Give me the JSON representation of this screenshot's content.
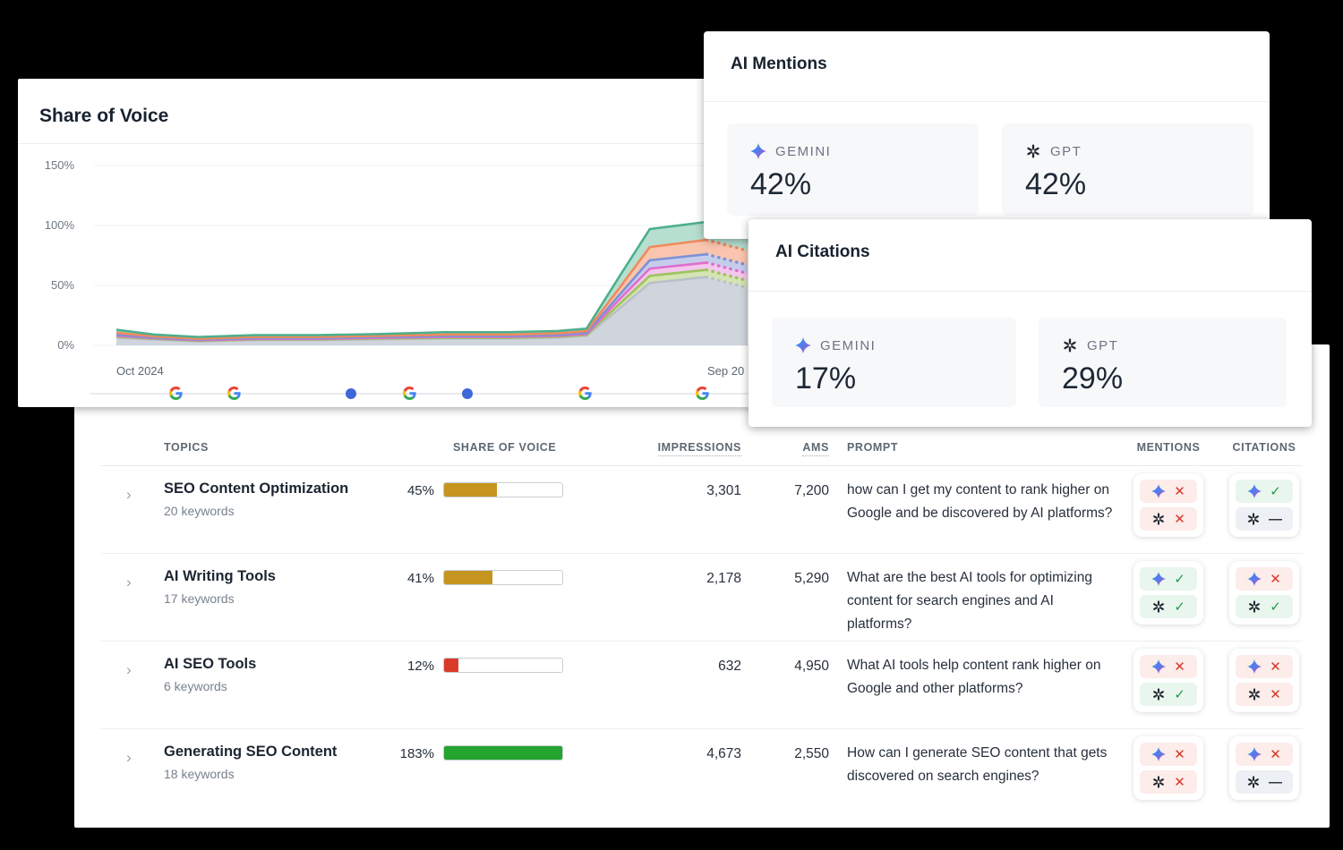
{
  "chart_data": {
    "type": "area",
    "title": "Share of Voice",
    "y_ticks": [
      "150%",
      "100%",
      "50%",
      "0%"
    ],
    "y_tick_values": [
      150,
      100,
      50,
      0
    ],
    "ylim": [
      0,
      160
    ],
    "x_axis": {
      "start_label": "Oct 2024",
      "end_label": "Sep 20"
    },
    "x": [
      0,
      0.06,
      0.13,
      0.22,
      0.32,
      0.42,
      0.52,
      0.62,
      0.7,
      0.745,
      0.8,
      0.845,
      0.935,
      1.0
    ],
    "forecast_from_index": 12,
    "series": [
      {
        "name": "series-1-teal",
        "color": "#4DAF8D",
        "fill": "rgba(96,185,150,0.45)",
        "values": [
          13,
          9,
          7,
          8.5,
          8.5,
          9.5,
          11,
          11,
          12,
          14,
          60,
          97,
          103,
          93
        ]
      },
      {
        "name": "series-2-orange",
        "color": "#F08A5C",
        "fill": "rgba(244,150,108,0.55)",
        "values": [
          10.5,
          7.5,
          5.5,
          7,
          7,
          8,
          9,
          9,
          10,
          12,
          50,
          82,
          88,
          79
        ]
      },
      {
        "name": "series-3-blue",
        "color": "#7E91D6",
        "fill": "rgba(140,156,216,0.5)",
        "values": [
          9,
          6.5,
          4.8,
          6,
          6,
          7,
          7.8,
          7.8,
          8.8,
          10.5,
          44,
          71,
          76,
          67
        ]
      },
      {
        "name": "series-4-pink",
        "color": "#E06ECF",
        "fill": "rgba(230,130,214,0.45)",
        "values": [
          8,
          6,
          4.2,
          5.4,
          5.4,
          6.3,
          7,
          7,
          8,
          9.5,
          40,
          64,
          69,
          60
        ]
      },
      {
        "name": "series-5-lime",
        "color": "#9EC45C",
        "fill": "rgba(170,202,104,0.5)",
        "values": [
          7.2,
          5.4,
          3.8,
          4.9,
          4.9,
          5.7,
          6.3,
          6.3,
          7.2,
          8.7,
          36,
          58,
          63,
          54
        ]
      },
      {
        "name": "series-6-gray",
        "color": "#B9C0CA",
        "fill": "rgba(206,211,219,0.95)",
        "values": [
          6.4,
          4.8,
          3.4,
          4.4,
          4.4,
          5.1,
          5.7,
          5.7,
          6.5,
          8,
          32,
          52,
          57,
          48
        ]
      }
    ],
    "markers": [
      {
        "type": "google-icon",
        "f": 0.094
      },
      {
        "type": "google-icon",
        "f": 0.186
      },
      {
        "type": "event-dot",
        "f": 0.372
      },
      {
        "type": "google-icon",
        "f": 0.464
      },
      {
        "type": "event-dot",
        "f": 0.556
      },
      {
        "type": "google-icon",
        "f": 0.742
      },
      {
        "type": "google-icon",
        "f": 0.929
      }
    ],
    "marker_dot_color": "#3E68D8"
  },
  "ai_mentions": {
    "title": "AI Mentions",
    "stats": [
      {
        "provider": "GEMINI",
        "icon": "gemini-icon",
        "value": "42%"
      },
      {
        "provider": "GPT",
        "icon": "gpt-icon",
        "value": "42%"
      }
    ]
  },
  "ai_citations": {
    "title": "AI Citations",
    "stats": [
      {
        "provider": "GEMINI",
        "icon": "gemini-icon",
        "value": "17%"
      },
      {
        "provider": "GPT",
        "icon": "gpt-icon",
        "value": "29%"
      }
    ]
  },
  "marks": {
    "check": "✓",
    "x": "✕",
    "dash": "—"
  },
  "table": {
    "columns": [
      "TOPICS",
      "SHARE OF VOICE",
      "IMPRESSIONS",
      "AMS",
      "PROMPT",
      "MENTIONS",
      "CITATIONS"
    ],
    "rows": [
      {
        "topic": "SEO Content Optimization",
        "keywords": "20 keywords",
        "sov": "45%",
        "sov_pct": 45,
        "sov_color": "#C6951F",
        "impressions": "3,301",
        "ams": "7,200",
        "prompt": "how can I get my content to rank higher on Google and be discovered by AI platforms?",
        "mentions": [
          {
            "icon": "gemini",
            "state": "x"
          },
          {
            "icon": "gpt",
            "state": "x"
          }
        ],
        "citations": [
          {
            "icon": "gemini",
            "state": "check"
          },
          {
            "icon": "gpt",
            "state": "dash"
          }
        ]
      },
      {
        "topic": "AI Writing Tools",
        "keywords": "17 keywords",
        "sov": "41%",
        "sov_pct": 41,
        "sov_color": "#C6951F",
        "impressions": "2,178",
        "ams": "5,290",
        "prompt": "What are the best AI tools for optimizing content for search engines and AI platforms?",
        "mentions": [
          {
            "icon": "gemini",
            "state": "check"
          },
          {
            "icon": "gpt",
            "state": "check"
          }
        ],
        "citations": [
          {
            "icon": "gemini",
            "state": "x"
          },
          {
            "icon": "gpt",
            "state": "check"
          }
        ]
      },
      {
        "topic": "AI SEO Tools",
        "keywords": "6 keywords",
        "sov": "12%",
        "sov_pct": 12,
        "sov_color": "#D93B2B",
        "impressions": "632",
        "ams": "4,950",
        "prompt": "What AI tools help content rank higher on Google and other platforms?",
        "mentions": [
          {
            "icon": "gemini",
            "state": "x"
          },
          {
            "icon": "gpt",
            "state": "check"
          }
        ],
        "citations": [
          {
            "icon": "gemini",
            "state": "x"
          },
          {
            "icon": "gpt",
            "state": "x"
          }
        ]
      },
      {
        "topic": "Generating SEO Content",
        "keywords": "18 keywords",
        "sov": "183%",
        "sov_pct": 183,
        "sov_color": "#23A52F",
        "impressions": "4,673",
        "ams": "2,550",
        "prompt": "How can I generate SEO content that gets discovered on search engines?",
        "mentions": [
          {
            "icon": "gemini",
            "state": "x"
          },
          {
            "icon": "gpt",
            "state": "x"
          }
        ],
        "citations": [
          {
            "icon": "gemini",
            "state": "x"
          },
          {
            "icon": "gpt",
            "state": "dash"
          }
        ]
      }
    ]
  }
}
